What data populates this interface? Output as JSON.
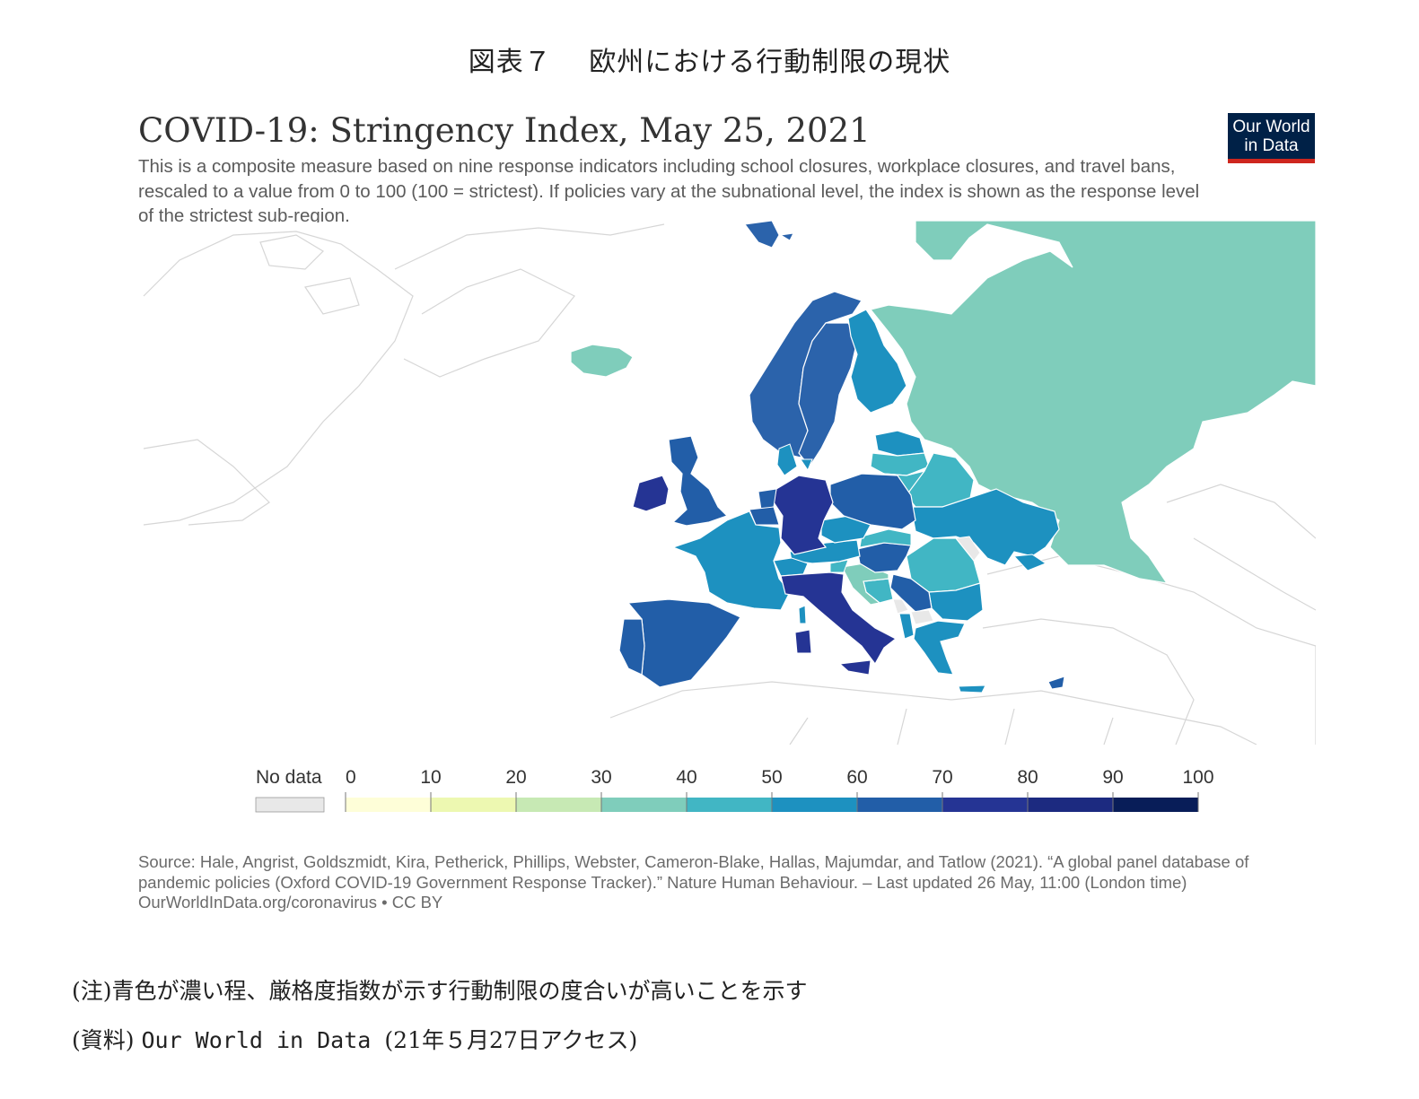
{
  "figure": {
    "title": "図表７　 欧州における行動制限の現状"
  },
  "chart": {
    "title": "COVID-19: Stringency Index, May 25, 2021",
    "subtitle": "This is a composite measure based on nine response indicators including school closures, workplace closures, and travel bans, rescaled to a value from 0 to 100 (100 = strictest). If policies vary at the subnational level, the index is shown as the response level of the strictest sub-region.",
    "logo_line1": "Our World",
    "logo_line2": "in Data",
    "source_text": "Source: Hale, Angrist, Goldszmidt, Kira, Petherick, Phillips, Webster, Cameron-Blake, Hallas, Majumdar, and Tatlow (2021). “A global panel database of pandemic policies (Oxford COVID-19 Government Response Tracker).” Nature Human Behaviour. – Last updated 26 May, 11:00 (London time)",
    "source_url": "OurWorldInData.org/coronavirus • CC BY"
  },
  "legend": {
    "no_data_label": "No data",
    "no_data_color": "#e8e8e8",
    "ticks": [
      "0",
      "10",
      "20",
      "30",
      "40",
      "50",
      "60",
      "70",
      "80",
      "90",
      "100"
    ],
    "colors": [
      "#fefed8",
      "#edf8b1",
      "#c7e9b4",
      "#7fcdbb",
      "#41b6c4",
      "#1d91c0",
      "#225ea8",
      "#253494",
      "#1c2a80",
      "#081d58"
    ]
  },
  "map_regions": [
    {
      "name": "Russia",
      "color": "#7fcdbb"
    },
    {
      "name": "Iceland",
      "color": "#7fcdbb"
    },
    {
      "name": "Norway",
      "color": "#2b63ab"
    },
    {
      "name": "Sweden",
      "color": "#2b63ab"
    },
    {
      "name": "Finland",
      "color": "#1d91c0"
    },
    {
      "name": "Estonia",
      "color": "#1d91c0"
    },
    {
      "name": "Latvia",
      "color": "#41b6c4"
    },
    {
      "name": "Lithuania",
      "color": "#41b6c4"
    },
    {
      "name": "Belarus",
      "color": "#41b6c4"
    },
    {
      "name": "Ukraine",
      "color": "#1d91c0"
    },
    {
      "name": "Moldova",
      "color": "#e8e8e8"
    },
    {
      "name": "Romania",
      "color": "#41b6c4"
    },
    {
      "name": "Bulgaria",
      "color": "#1d91c0"
    },
    {
      "name": "Greece",
      "color": "#1d91c0"
    },
    {
      "name": "Turkey",
      "color": "#ffffff"
    },
    {
      "name": "Cyprus",
      "color": "#225ea8"
    },
    {
      "name": "Crete",
      "color": "#1d91c0"
    },
    {
      "name": "Poland",
      "color": "#225ea8"
    },
    {
      "name": "Germany",
      "color": "#253494"
    },
    {
      "name": "Denmark",
      "color": "#1d91c0"
    },
    {
      "name": "Netherlands",
      "color": "#225ea8"
    },
    {
      "name": "Belgium",
      "color": "#225ea8"
    },
    {
      "name": "France",
      "color": "#1d91c0"
    },
    {
      "name": "Spain",
      "color": "#225ea8"
    },
    {
      "name": "Portugal",
      "color": "#225ea8"
    },
    {
      "name": "United Kingdom",
      "color": "#225ea8"
    },
    {
      "name": "Ireland",
      "color": "#253494"
    },
    {
      "name": "Switzerland",
      "color": "#1d91c0"
    },
    {
      "name": "Italy",
      "color": "#253494"
    },
    {
      "name": "Sardinia",
      "color": "#253494"
    },
    {
      "name": "Corsica",
      "color": "#1d91c0"
    },
    {
      "name": "Sicily",
      "color": "#253494"
    },
    {
      "name": "Austria",
      "color": "#1d91c0"
    },
    {
      "name": "Czechia",
      "color": "#1d91c0"
    },
    {
      "name": "Slovakia",
      "color": "#41b6c4"
    },
    {
      "name": "Hungary",
      "color": "#225ea8"
    },
    {
      "name": "Slovenia",
      "color": "#41b6c4"
    },
    {
      "name": "Croatia",
      "color": "#7fcdbb"
    },
    {
      "name": "Bosnia and Herzegovina",
      "color": "#41b6c4"
    },
    {
      "name": "Serbia",
      "color": "#225ea8"
    },
    {
      "name": "Montenegro",
      "color": "#e8e8e8"
    },
    {
      "name": "Kosovo",
      "color": "#e8e8e8"
    },
    {
      "name": "Albania",
      "color": "#1d91c0"
    },
    {
      "name": "North Macedonia",
      "color": "#1d91c0"
    },
    {
      "name": "Svalbard",
      "color": "#2b63ab"
    }
  ],
  "notes": {
    "note1": "(注)青色が濃い程、厳格度指数が示す行動制限の度合いが高いことを示す",
    "note2_prefix": "(資料) ",
    "note2_mono": "Our World in Data ",
    "note2_suffix": "(21年５月27日アクセス)"
  }
}
